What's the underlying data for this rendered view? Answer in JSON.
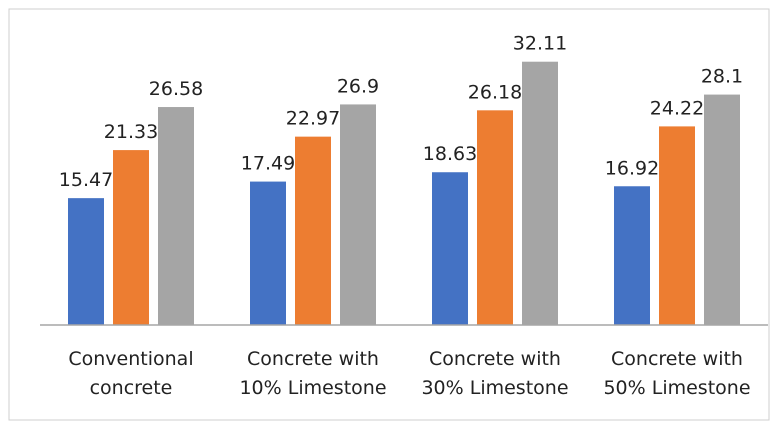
{
  "chart_data": {
    "type": "bar",
    "categories": [
      [
        "Conventional",
        "concrete"
      ],
      [
        "Concrete with",
        "10% Limestone"
      ],
      [
        "Concrete with",
        "30% Limestone"
      ],
      [
        "Concrete with",
        "50% Limestone"
      ]
    ],
    "series": [
      {
        "color": "#4472C4",
        "values": [
          15.47,
          17.49,
          18.63,
          16.92
        ]
      },
      {
        "color": "#ED7D31",
        "values": [
          21.33,
          22.97,
          26.18,
          24.22
        ]
      },
      {
        "color": "#A5A5A5",
        "values": [
          26.58,
          26.9,
          32.11,
          28.1
        ]
      }
    ],
    "ylim": [
      0,
      35
    ],
    "grid": false,
    "legend": "none",
    "data_labels": true
  }
}
